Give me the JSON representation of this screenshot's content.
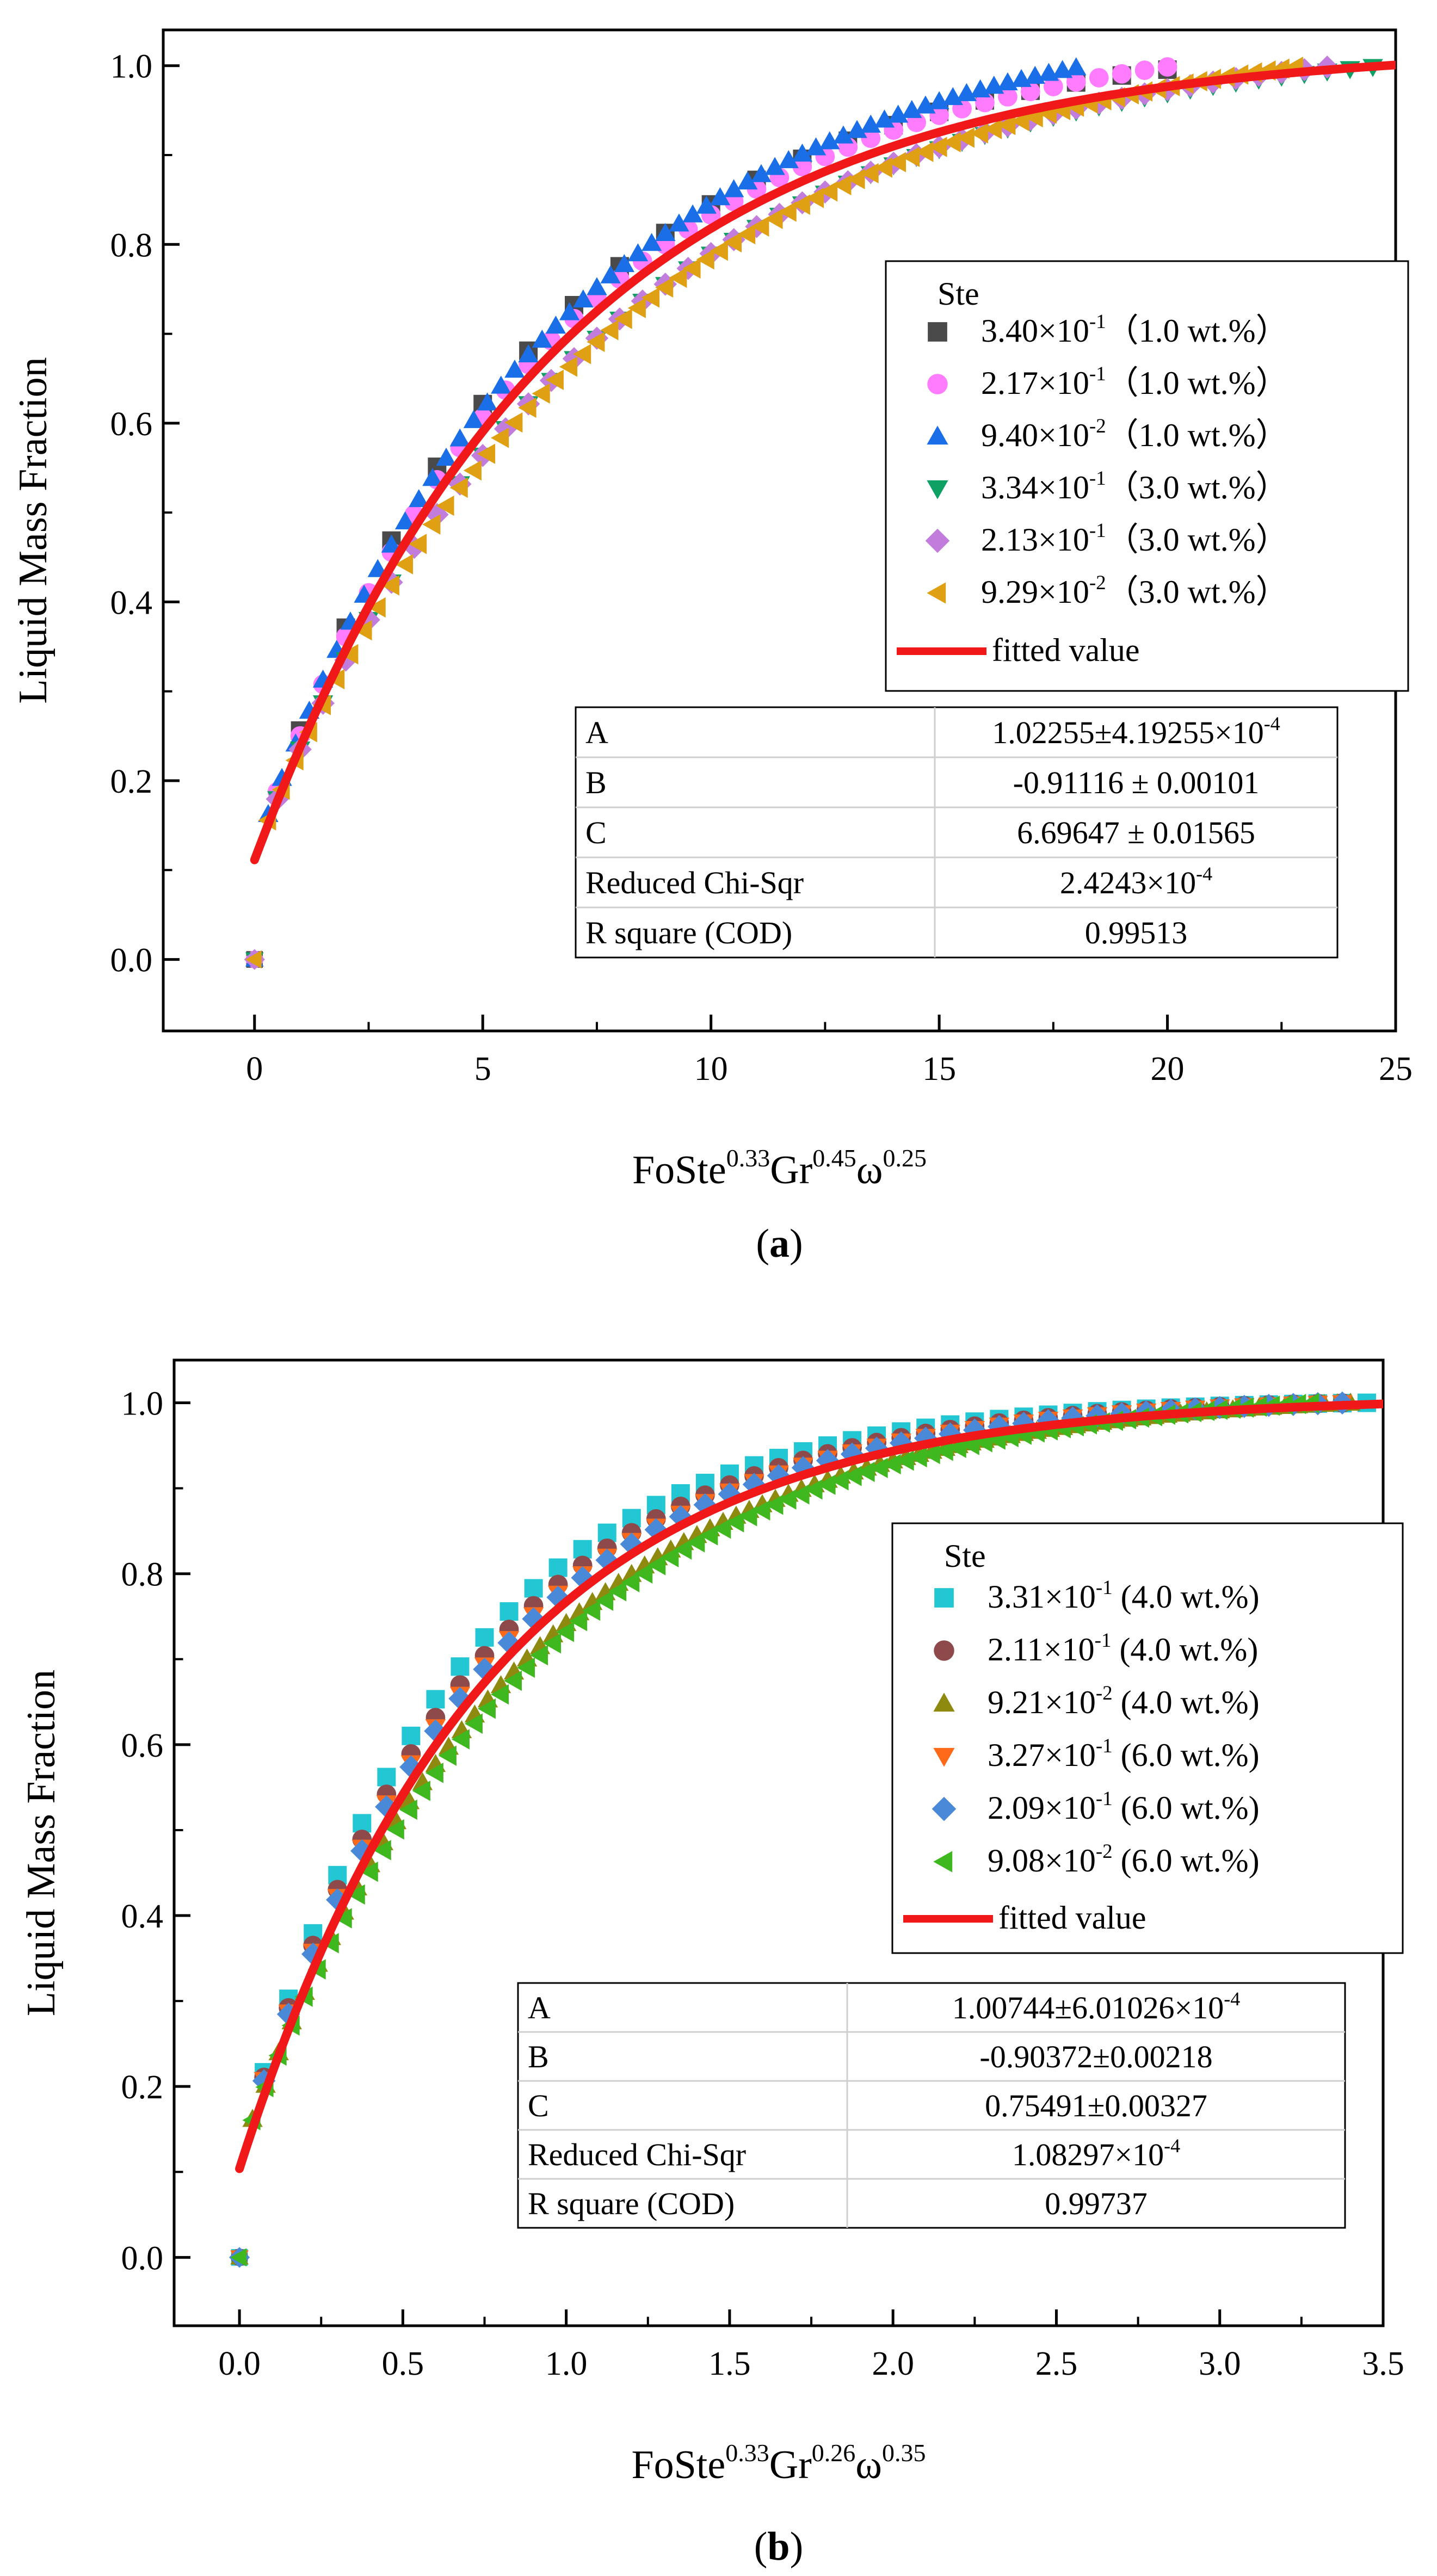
{
  "chart_data": [
    {
      "panel_label": "a",
      "type": "scatter",
      "xlabel": "FoSte^0.33Gr^0.45ω^0.25",
      "xlabel_parts": {
        "base1": "FoSte",
        "exp1": "0.33",
        "base2": "Gr",
        "exp2": "0.45",
        "base3": "ω",
        "exp3": "0.25"
      },
      "ylabel": "Liquid Mass Fraction",
      "xlim": [
        -2,
        25
      ],
      "ylim": [
        -0.08,
        1.04
      ],
      "xticks": [
        0,
        5,
        10,
        15,
        20,
        25
      ],
      "xtick_labels": [
        "0",
        "5",
        "10",
        "15",
        "20",
        "25"
      ],
      "yticks": [
        0.0,
        0.2,
        0.4,
        0.6,
        0.8,
        1.0
      ],
      "ytick_labels": [
        "0.0",
        "0.2",
        "0.4",
        "0.6",
        "0.8",
        "1.0"
      ],
      "grid": false,
      "legend_title": "Ste",
      "legend_position": "center-right",
      "series": [
        {
          "name": "3.40×10⁻¹（1.0 wt.%）",
          "mantissa": "3.40",
          "exp": "-1",
          "suffix": "（1.0 wt.%）",
          "marker": "square",
          "color": "#4a4a4a",
          "x_end": 20.8,
          "k": 0.168,
          "step": 1.0
        },
        {
          "name": "2.17×10⁻¹（1.0 wt.%）",
          "mantissa": "2.17",
          "exp": "-1",
          "suffix": "（1.0 wt.%）",
          "marker": "circle",
          "color": "#ff7cff",
          "x_end": 20.2,
          "k": 0.16,
          "step": 0.5
        },
        {
          "name": "9.40×10⁻²（1.0 wt.%）",
          "mantissa": "9.40",
          "exp": "-2",
          "suffix": "（1.0 wt.%）",
          "marker": "triangle-up",
          "color": "#1a6fe8",
          "x_end": 18.2,
          "k": 0.165,
          "step": 0.3
        },
        {
          "name": "3.34×10⁻¹（3.0 wt.%）",
          "mantissa": "3.34",
          "exp": "-1",
          "suffix": "（3.0 wt.%）",
          "marker": "triangle-down",
          "color": "#0fa063",
          "x_end": 24.8,
          "k": 0.14,
          "step": 0.5
        },
        {
          "name": "2.13×10⁻¹（3.0 wt.%）",
          "mantissa": "2.13",
          "exp": "-1",
          "suffix": "（3.0 wt.%）",
          "marker": "diamond",
          "color": "#c27ddc",
          "x_end": 23.8,
          "k": 0.14,
          "step": 0.5
        },
        {
          "name": "9.29×10⁻²（3.0 wt.%）",
          "mantissa": "9.29",
          "exp": "-2",
          "suffix": "（3.0 wt.%）",
          "marker": "triangle-left",
          "color": "#e0a014",
          "x_end": 23.0,
          "k": 0.138,
          "step": 0.3
        }
      ],
      "fit": {
        "label": "fitted value",
        "color": "#f01818",
        "A": 1.02255,
        "B": -0.91116,
        "C": 6.69647,
        "x_range": [
          0,
          25
        ]
      },
      "stats_table": [
        {
          "label": "A",
          "value": "1.02255±4.19255×10",
          "exp": "-4"
        },
        {
          "label": "B",
          "value": "-0.91116 ± 0.00101",
          "exp": ""
        },
        {
          "label": "C",
          "value": "6.69647 ± 0.01565",
          "exp": ""
        },
        {
          "label": "Reduced Chi-Sqr",
          "value": "2.4243×10",
          "exp": "-4"
        },
        {
          "label": "R square (COD)",
          "value": "0.99513",
          "exp": ""
        }
      ]
    },
    {
      "panel_label": "b",
      "type": "scatter",
      "xlabel": "FoSte^0.33Gr^0.26ω^0.35",
      "xlabel_parts": {
        "base1": "FoSte",
        "exp1": "0.33",
        "base2": "Gr",
        "exp2": "0.26",
        "base3": "ω",
        "exp3": "0.35"
      },
      "ylabel": "Liquid Mass Fraction",
      "xlim": [
        -0.2,
        3.5
      ],
      "ylim": [
        -0.08,
        1.05
      ],
      "xticks": [
        0.0,
        0.5,
        1.0,
        1.5,
        2.0,
        2.5,
        3.0,
        3.5
      ],
      "xtick_labels": [
        "0.0",
        "0.5",
        "1.0",
        "1.5",
        "2.0",
        "2.5",
        "3.0",
        "3.5"
      ],
      "yticks": [
        0.0,
        0.2,
        0.4,
        0.6,
        0.8,
        1.0
      ],
      "ytick_labels": [
        "0.0",
        "0.2",
        "0.4",
        "0.6",
        "0.8",
        "1.0"
      ],
      "grid": false,
      "legend_title": "Ste",
      "legend_position": "center-right",
      "series": [
        {
          "name": "3.31×10⁻¹ (4.0 wt.%)",
          "mantissa": "3.31",
          "exp": "-1",
          "suffix": " (4.0 wt.%)",
          "marker": "square",
          "color": "#22c7d3",
          "x_end": 3.45,
          "k": 1.55,
          "step": 0.075
        },
        {
          "name": "2.11×10⁻¹ (4.0 wt.%)",
          "mantissa": "2.11",
          "exp": "-1",
          "suffix": " (4.0 wt.%)",
          "marker": "circle",
          "color": "#8e4a4a",
          "x_end": 3.4,
          "k": 1.45,
          "step": 0.075
        },
        {
          "name": "9.21×10⁻² (4.0 wt.%)",
          "mantissa": "9.21",
          "exp": "-2",
          "suffix": " (4.0 wt.%)",
          "marker": "triangle-up",
          "color": "#8e8a10",
          "x_end": 3.4,
          "k": 1.22,
          "step": 0.04
        },
        {
          "name": "3.27×10⁻¹ (6.0 wt.%)",
          "mantissa": "3.27",
          "exp": "-1",
          "suffix": " (6.0 wt.%)",
          "marker": "triangle-down",
          "color": "#ff6a1a",
          "x_end": 3.4,
          "k": 1.4,
          "step": 0.075
        },
        {
          "name": "2.09×10⁻¹ (6.0 wt.%)",
          "mantissa": "2.09",
          "exp": "-1",
          "suffix": " (6.0 wt.%)",
          "marker": "diamond",
          "color": "#4a88d8",
          "x_end": 3.4,
          "k": 1.38,
          "step": 0.075
        },
        {
          "name": "9.08×10⁻² (6.0 wt.%)",
          "mantissa": "9.08",
          "exp": "-2",
          "suffix": " (6.0 wt.%)",
          "marker": "triangle-left",
          "color": "#3fb81f",
          "x_end": 3.3,
          "k": 1.18,
          "step": 0.04
        }
      ],
      "fit": {
        "label": "fitted value",
        "color": "#f01818",
        "A": 1.00744,
        "B": -0.90372,
        "C": 0.75491,
        "x_range": [
          0,
          3.5
        ]
      },
      "stats_table": [
        {
          "label": "A",
          "value": "1.00744±6.01026×10",
          "exp": "-4"
        },
        {
          "label": "B",
          "value": "-0.90372±0.00218",
          "exp": ""
        },
        {
          "label": "C",
          "value": "0.75491±0.00327",
          "exp": ""
        },
        {
          "label": "Reduced Chi-Sqr",
          "value": "1.08297×10",
          "exp": "-4"
        },
        {
          "label": "R square (COD)",
          "value": "0.99737",
          "exp": ""
        }
      ]
    }
  ]
}
